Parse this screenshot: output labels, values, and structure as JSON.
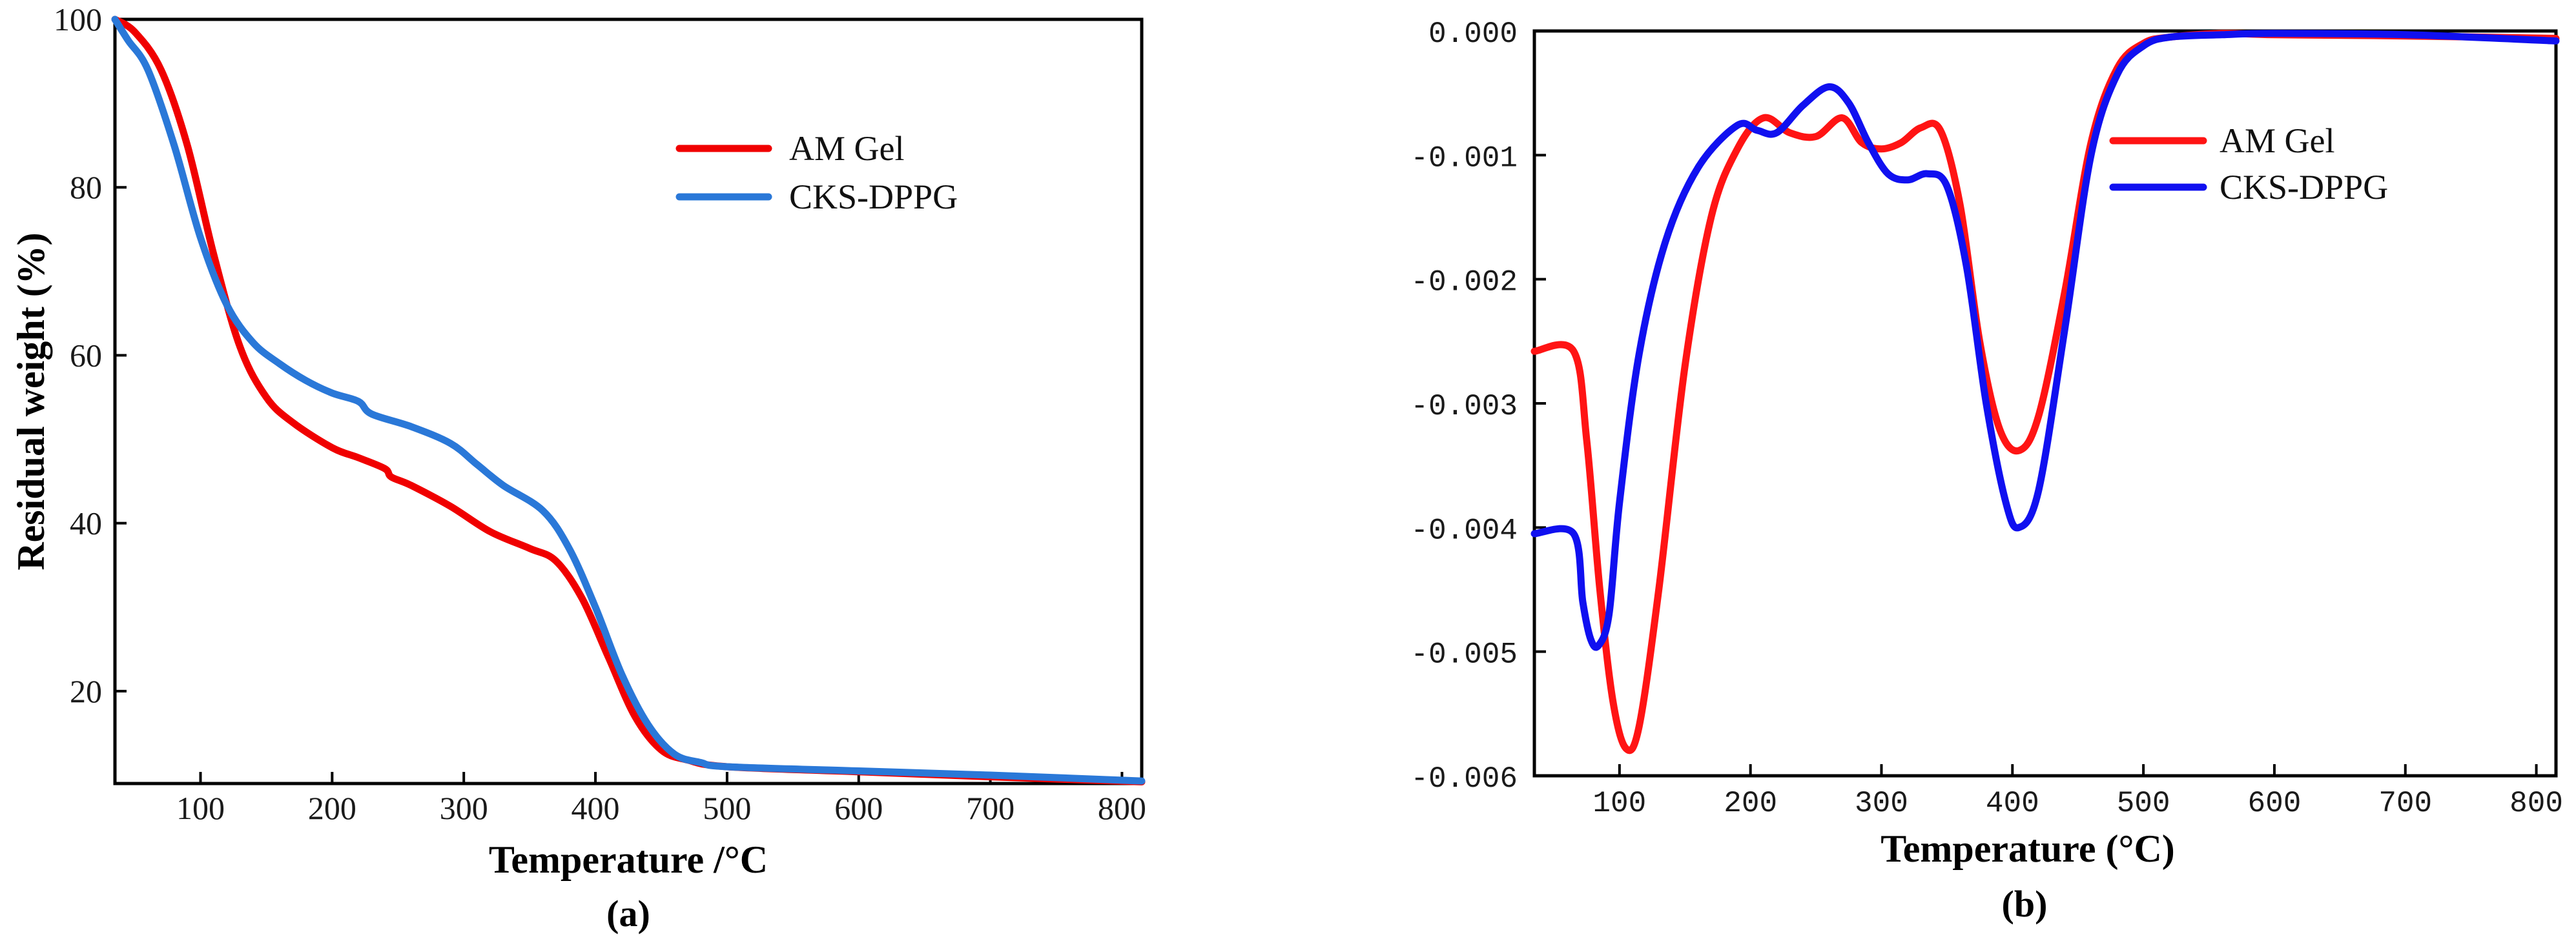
{
  "colors": {
    "panel_a": {
      "AM Gel": "#f00000",
      "CKS-DPPG": "#2a78d8"
    },
    "panel_b": {
      "AM Gel": "#ff1414",
      "CKS-DPPG": "#1010f0"
    }
  },
  "chart_data": [
    {
      "type": "line",
      "panel_label": "(a)",
      "xlabel": "Temperature /°C",
      "ylabel": "Residual weight (%)",
      "xlim": [
        35,
        815
      ],
      "ylim": [
        9,
        100
      ],
      "x_ticks": [
        "100",
        "200",
        "300",
        "400",
        "500",
        "600",
        "700",
        "800"
      ],
      "y_ticks": [
        "100",
        "80",
        "60",
        "40",
        "20"
      ],
      "legend_position": "top-right",
      "grid": false,
      "series": [
        {
          "name": "AM Gel",
          "x": [
            35,
            50,
            70,
            90,
            110,
            130,
            150,
            170,
            200,
            220,
            240,
            245,
            260,
            290,
            320,
            350,
            370,
            390,
            410,
            430,
            450,
            470,
            500,
            600,
            700,
            815
          ],
          "y": [
            100,
            98.5,
            94,
            85,
            72,
            61,
            55,
            52,
            49,
            47.8,
            46.5,
            45.5,
            44.5,
            42,
            39,
            37,
            35.5,
            31,
            24,
            17,
            13,
            11.8,
            11,
            10.4,
            9.8,
            9.2
          ]
        },
        {
          "name": "CKS-DPPG",
          "x": [
            35,
            45,
            60,
            80,
            100,
            120,
            140,
            160,
            180,
            200,
            220,
            230,
            260,
            290,
            310,
            330,
            360,
            380,
            400,
            420,
            440,
            460,
            480,
            500,
            600,
            700,
            815
          ],
          "y": [
            100,
            97.5,
            94,
            85,
            74,
            66,
            61.5,
            59,
            57,
            55.5,
            54.5,
            53,
            51.5,
            49.5,
            47,
            44.5,
            41.5,
            37,
            30,
            22,
            16,
            12.5,
            11.5,
            11,
            10.5,
            10,
            9.3
          ]
        }
      ]
    },
    {
      "type": "line",
      "panel_label": "(b)",
      "xlabel": "Temperature (°C)",
      "ylabel": "",
      "xlim": [
        35,
        815
      ],
      "ylim": [
        -0.006,
        0.0
      ],
      "x_ticks": [
        "100",
        "200",
        "300",
        "400",
        "500",
        "600",
        "700",
        "800"
      ],
      "y_ticks": [
        "0.000",
        "-0.001",
        "-0.002",
        "-0.003",
        "-0.004",
        "-0.005",
        "-0.006"
      ],
      "legend_position": "top-right",
      "grid": false,
      "series": [
        {
          "name": "AM Gel",
          "x": [
            35,
            65,
            75,
            85,
            95,
            105,
            115,
            130,
            150,
            170,
            190,
            210,
            230,
            250,
            270,
            285,
            300,
            315,
            330,
            345,
            360,
            375,
            390,
            405,
            420,
            440,
            460,
            480,
            500,
            520,
            560,
            600,
            700,
            815
          ],
          "y": [
            -0.00258,
            -0.00258,
            -0.0033,
            -0.0045,
            -0.0054,
            -0.00578,
            -0.0056,
            -0.0045,
            -0.0027,
            -0.0015,
            -0.00095,
            -0.0007,
            -0.00082,
            -0.00085,
            -0.0007,
            -0.0009,
            -0.00095,
            -0.0009,
            -0.00078,
            -0.0008,
            -0.0014,
            -0.0025,
            -0.0032,
            -0.00338,
            -0.0031,
            -0.0021,
            -0.0009,
            -0.0003,
            -0.0001,
            -5e-05,
            -2e-05,
            -3e-05,
            -4e-05,
            -6e-05
          ]
        },
        {
          "name": "CKS-DPPG",
          "x": [
            35,
            65,
            72,
            78,
            84,
            92,
            100,
            115,
            135,
            160,
            190,
            205,
            220,
            240,
            260,
            275,
            290,
            305,
            320,
            335,
            350,
            365,
            380,
            395,
            405,
            420,
            440,
            460,
            480,
            500,
            520,
            560,
            600,
            700,
            815
          ],
          "y": [
            -0.00405,
            -0.00405,
            -0.0046,
            -0.0049,
            -0.00495,
            -0.0047,
            -0.0038,
            -0.0026,
            -0.0017,
            -0.0011,
            -0.00076,
            -0.0008,
            -0.00082,
            -0.0006,
            -0.00045,
            -0.00058,
            -0.0009,
            -0.00115,
            -0.0012,
            -0.00115,
            -0.00125,
            -0.0019,
            -0.003,
            -0.0038,
            -0.004,
            -0.0037,
            -0.0024,
            -0.001,
            -0.00035,
            -0.00012,
            -5e-05,
            -3e-05,
            -2e-05,
            -3e-05,
            -8e-05
          ]
        }
      ]
    }
  ]
}
